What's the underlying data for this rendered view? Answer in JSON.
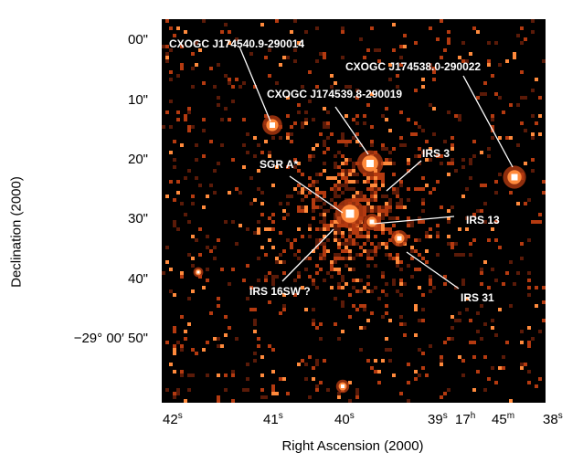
{
  "axes": {
    "ylabel": "Declination (2000)",
    "xlabel": "Right Ascension (2000)",
    "yticks": [
      "00\"",
      "10\"",
      "20\"",
      "30\"",
      "40\"",
      "−29° 00′ 50\""
    ],
    "xticks": [
      {
        "main": "42",
        "sup": "s"
      },
      {
        "main": "41",
        "sup": "s"
      },
      {
        "main": "40",
        "sup": "s"
      },
      {
        "main": "39",
        "sup": "s"
      },
      {
        "main": "17",
        "sup": "h"
      },
      {
        "main": "45",
        "sup": "m"
      },
      {
        "main": "38",
        "sup": "s"
      }
    ]
  },
  "labels": {
    "cxo_014": "CXOGC J174540.9-290014",
    "cxo_022": "CXOGC J174538.0-290022",
    "cxo_019": "CXOGC J174539.8-290019",
    "sgra": "SGR A*",
    "irs3": "IRS 3",
    "irs13": "IRS 13",
    "irs31": "IRS 31",
    "irs16sw": "IRS 16SW ?"
  },
  "colors": {
    "background": "#000000",
    "pixel_dim": "#5a1a08",
    "pixel_mid": "#b43a10",
    "pixel_bright": "#ff8a3c",
    "pixel_hot": "#ffffff"
  }
}
